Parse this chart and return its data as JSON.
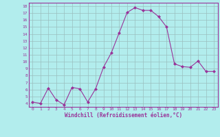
{
  "x": [
    0,
    1,
    2,
    3,
    4,
    5,
    6,
    7,
    8,
    9,
    10,
    11,
    12,
    13,
    14,
    15,
    16,
    17,
    18,
    19,
    20,
    21,
    22,
    23
  ],
  "y": [
    4.2,
    4.0,
    6.2,
    4.5,
    3.8,
    6.3,
    6.1,
    4.2,
    6.1,
    9.2,
    11.3,
    14.2,
    17.1,
    17.8,
    17.4,
    17.4,
    16.5,
    15.0,
    9.7,
    9.3,
    9.2,
    10.1,
    8.6,
    8.6
  ],
  "line_color": "#993399",
  "marker_color": "#993399",
  "bg_color": "#b2eded",
  "grid_color": "#9bbfbf",
  "xlabel": "Windchill (Refroidissement éolien,°C)",
  "ylabel_ticks": [
    4,
    5,
    6,
    7,
    8,
    9,
    10,
    11,
    12,
    13,
    14,
    15,
    16,
    17,
    18
  ],
  "xlim": [
    -0.5,
    23.5
  ],
  "ylim": [
    3.5,
    18.5
  ],
  "xlabel_color": "#993399",
  "tick_color": "#993399",
  "spine_color": "#993399"
}
